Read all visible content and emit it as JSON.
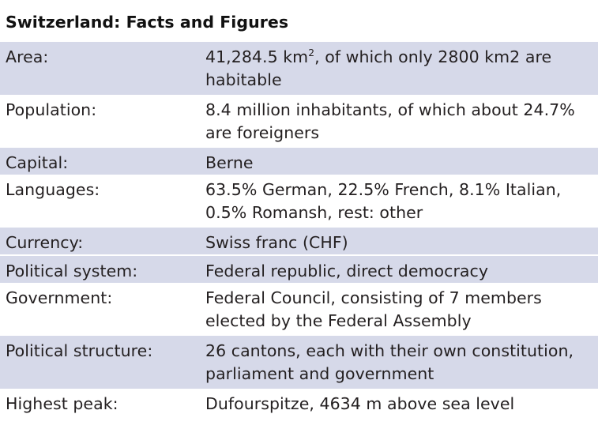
{
  "title": "Switzerland: Facts and Figures",
  "rows": [
    {
      "label": "Area:",
      "line1_pre": "41,284.5 km",
      "line1_sup": "2",
      "line1_post": ", of which only 2800 km2 are",
      "line2": "habitable"
    },
    {
      "label": "Population:",
      "line1": "8.4 million inhabitants, of which about 24.7%",
      "line2": "are foreigners"
    },
    {
      "label": "Capital:",
      "line1": "Berne"
    },
    {
      "label": "Languages:",
      "line1": "63.5% German, 22.5% French, 8.1% Italian,",
      "line2": "0.5% Romansh, rest: other"
    },
    {
      "label": "Currency:",
      "line1": "Swiss franc (CHF)"
    },
    {
      "label": "Political system:",
      "line1": "Federal republic, direct democracy"
    },
    {
      "label": "Government:",
      "line1": "Federal Council, consisting of 7 members",
      "line2": "elected by the Federal Assembly"
    },
    {
      "label": "Political structure:",
      "line1": "26 cantons, each with their own constitution,",
      "line2": "parliament and government"
    },
    {
      "label": "Highest peak:",
      "line1": "Dufourspitze, 4634 m above sea level"
    }
  ]
}
